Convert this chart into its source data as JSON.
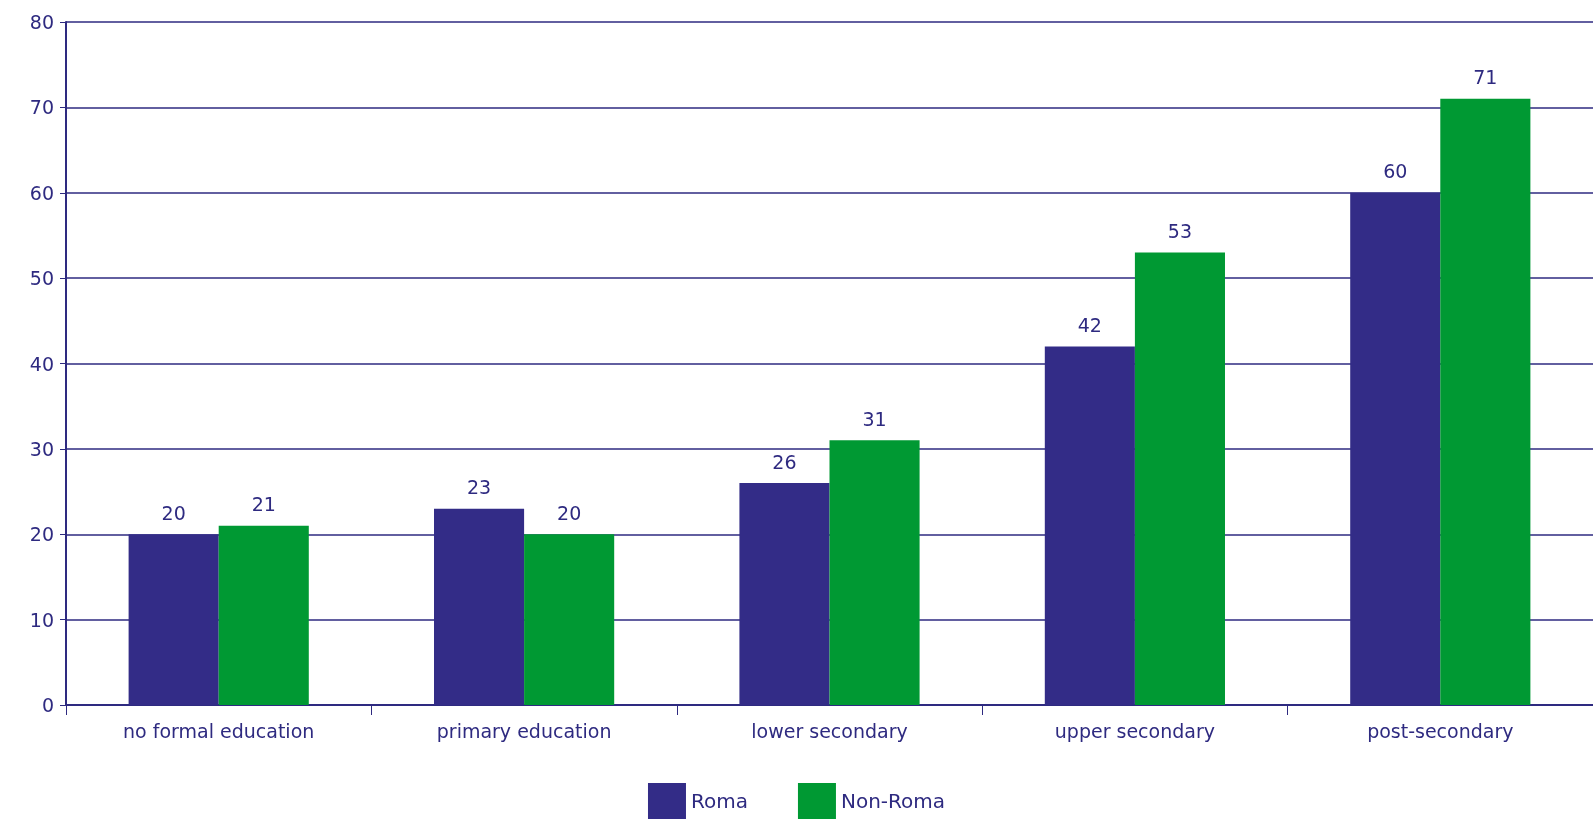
{
  "chart_data": {
    "type": "bar",
    "categories": [
      "no formal education",
      "primary education",
      "lower secondary",
      "upper secondary",
      "post-secondary"
    ],
    "series": [
      {
        "name": "Roma",
        "color": "#332c87",
        "values": [
          20,
          23,
          26,
          42,
          60
        ]
      },
      {
        "name": "Non-Roma",
        "color": "#009933",
        "values": [
          21,
          20,
          31,
          53,
          71
        ]
      }
    ],
    "ylim": [
      0,
      80
    ],
    "yticks": [
      0,
      10,
      20,
      30,
      40,
      50,
      60,
      70,
      80
    ],
    "grid": "y",
    "legend": "bottom",
    "data_labels": true
  }
}
